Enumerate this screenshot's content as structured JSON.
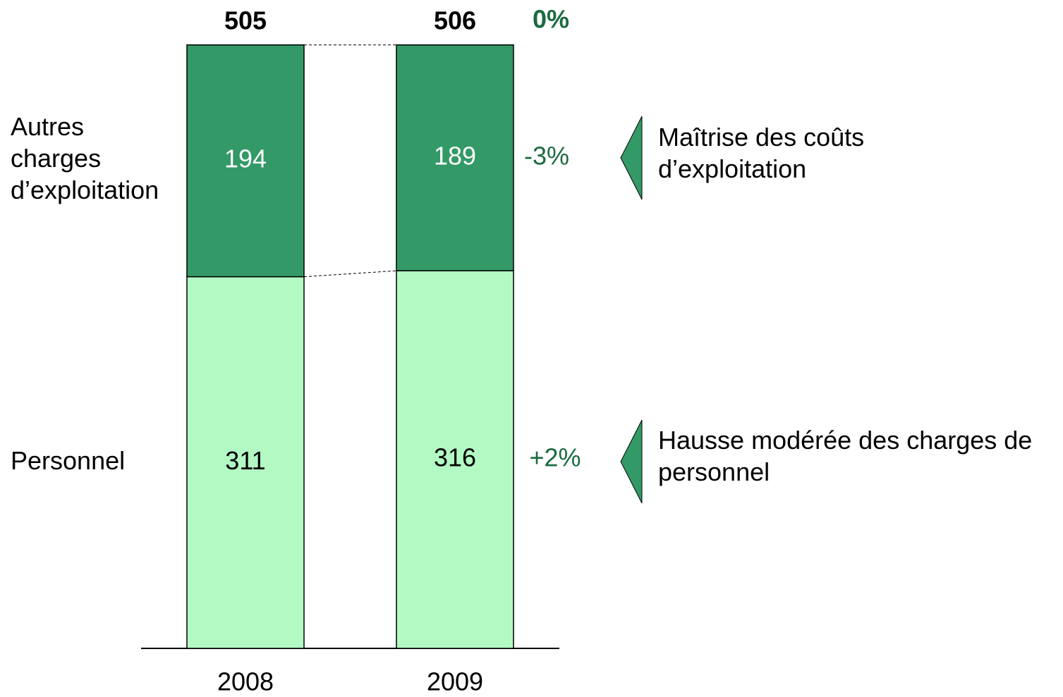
{
  "chart_data": {
    "type": "stacked_bar",
    "categories": [
      "2008",
      "2009"
    ],
    "series": [
      {
        "name": "Personnel",
        "color": "#b3f9c4",
        "values": [
          311,
          316
        ],
        "change_label": "+2%",
        "note": "Hausse modérée des charges de personnel"
      },
      {
        "name": "Autres charges d’exploitation",
        "color": "#339966",
        "values": [
          194,
          189
        ],
        "change_label": "-3%",
        "note": "Maîtrise des coûts d’exploitation"
      }
    ],
    "totals": [
      505,
      506
    ],
    "total_change_label": "0%"
  }
}
